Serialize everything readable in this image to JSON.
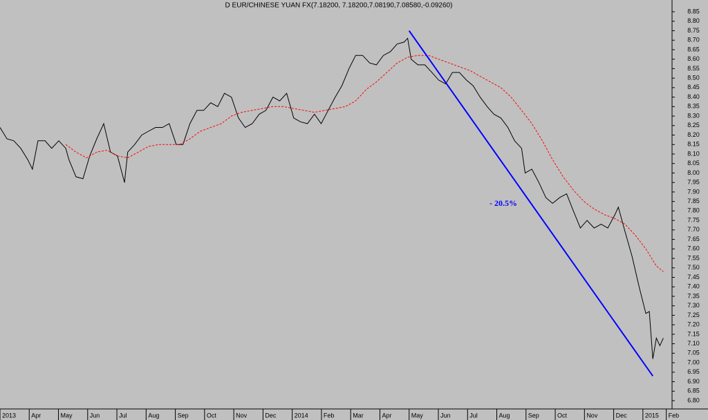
{
  "chart_data": {
    "type": "line",
    "title": "D EUR/CHINESE YUAN FX(7.18200, 7.18200,7.08190,7.08580,-0.09260)",
    "annotations": [
      "- 20.5%"
    ],
    "xlim": [
      0,
      22.95
    ],
    "xticks": [
      {
        "value": 0,
        "label": "2013"
      },
      {
        "value": 1,
        "label": "Apr"
      },
      {
        "value": 2,
        "label": "May"
      },
      {
        "value": 3,
        "label": "Jun"
      },
      {
        "value": 4,
        "label": "Jul"
      },
      {
        "value": 5,
        "label": "Aug"
      },
      {
        "value": 6,
        "label": "Sep"
      },
      {
        "value": 7,
        "label": "Oct"
      },
      {
        "value": 8,
        "label": "Nov"
      },
      {
        "value": 9,
        "label": "Dec"
      },
      {
        "value": 10,
        "label": "2014"
      },
      {
        "value": 11,
        "label": "Feb"
      },
      {
        "value": 12,
        "label": "Mar"
      },
      {
        "value": 13,
        "label": "Apr"
      },
      {
        "value": 14,
        "label": "May"
      },
      {
        "value": 15,
        "label": "Jun"
      },
      {
        "value": 16,
        "label": "Jul"
      },
      {
        "value": 17,
        "label": "Aug"
      },
      {
        "value": 18,
        "label": "Sep"
      },
      {
        "value": 19,
        "label": "Oct"
      },
      {
        "value": 20,
        "label": "Nov"
      },
      {
        "value": 21,
        "label": "Dec"
      },
      {
        "value": 22,
        "label": "2015"
      },
      {
        "value": 22.8,
        "label": "Feb"
      }
    ],
    "ylim": [
      6.8,
      8.85
    ],
    "yticks": [
      {
        "value": 6.8,
        "label": "6.80"
      },
      {
        "value": 6.85,
        "label": "6.85"
      },
      {
        "value": 6.9,
        "label": "6.90"
      },
      {
        "value": 6.95,
        "label": "6.95"
      },
      {
        "value": 7.0,
        "label": "7.00"
      },
      {
        "value": 7.05,
        "label": "7.05"
      },
      {
        "value": 7.1,
        "label": "7.10"
      },
      {
        "value": 7.15,
        "label": "7.15"
      },
      {
        "value": 7.2,
        "label": "7.20"
      },
      {
        "value": 7.25,
        "label": "7.25"
      },
      {
        "value": 7.3,
        "label": "7.30"
      },
      {
        "value": 7.35,
        "label": "7.35"
      },
      {
        "value": 7.4,
        "label": "7.40"
      },
      {
        "value": 7.45,
        "label": "7.45"
      },
      {
        "value": 7.5,
        "label": "7.50"
      },
      {
        "value": 7.55,
        "label": "7.55"
      },
      {
        "value": 7.6,
        "label": "7.60"
      },
      {
        "value": 7.65,
        "label": "7.65"
      },
      {
        "value": 7.7,
        "label": "7.70"
      },
      {
        "value": 7.75,
        "label": "7.75"
      },
      {
        "value": 7.8,
        "label": "7.80"
      },
      {
        "value": 7.85,
        "label": "7.85"
      },
      {
        "value": 7.9,
        "label": "7.90"
      },
      {
        "value": 7.95,
        "label": "7.95"
      },
      {
        "value": 8.0,
        "label": "8.00"
      },
      {
        "value": 8.05,
        "label": "8.05"
      },
      {
        "value": 8.1,
        "label": "8.10"
      },
      {
        "value": 8.15,
        "label": "8.15"
      },
      {
        "value": 8.2,
        "label": "8.20"
      },
      {
        "value": 8.25,
        "label": "8.25"
      },
      {
        "value": 8.3,
        "label": "8.30"
      },
      {
        "value": 8.35,
        "label": "8.35"
      },
      {
        "value": 8.4,
        "label": "8.40"
      },
      {
        "value": 8.45,
        "label": "8.45"
      },
      {
        "value": 8.5,
        "label": "8.50"
      },
      {
        "value": 8.55,
        "label": "8.55"
      },
      {
        "value": 8.6,
        "label": "8.60"
      },
      {
        "value": 8.65,
        "label": "8.65"
      },
      {
        "value": 8.7,
        "label": "8.70"
      },
      {
        "value": 8.75,
        "label": "8.75"
      },
      {
        "value": 8.8,
        "label": "8.80"
      },
      {
        "value": 8.85,
        "label": "8.85"
      }
    ],
    "grid": false,
    "series": [
      {
        "color": "#000000",
        "dashed": false,
        "x": [
          0,
          0.24,
          0.47,
          0.71,
          0.95,
          1.11,
          1.3,
          1.54,
          1.77,
          2.01,
          2.25,
          2.36,
          2.6,
          2.84,
          3.07,
          3.31,
          3.55,
          3.78,
          4.02,
          4.26,
          4.37,
          4.61,
          4.85,
          5.08,
          5.32,
          5.56,
          5.79,
          6.03,
          6.26,
          6.5,
          6.74,
          6.97,
          7.21,
          7.45,
          7.68,
          7.92,
          8.16,
          8.39,
          8.63,
          8.87,
          9.1,
          9.34,
          9.57,
          9.81,
          10.05,
          10.28,
          10.52,
          10.76,
          10.99,
          11.23,
          11.47,
          11.7,
          11.94,
          12.17,
          12.41,
          12.65,
          12.88,
          13.12,
          13.36,
          13.59,
          13.83,
          13.95,
          14.07,
          14.3,
          14.54,
          14.78,
          15.01,
          15.25,
          15.48,
          15.72,
          15.96,
          16.19,
          16.43,
          16.67,
          16.9,
          17.14,
          17.38,
          17.61,
          17.85,
          17.97,
          18.2,
          18.44,
          18.68,
          18.91,
          19.15,
          19.39,
          19.62,
          19.86,
          20.09,
          20.33,
          20.57,
          20.8,
          21.04,
          21.16,
          21.39,
          21.63,
          21.87,
          22.1,
          22.22,
          22.34,
          22.46,
          22.58,
          22.7
        ],
        "values": [
          8.24,
          8.18,
          8.17,
          8.13,
          8.07,
          8.02,
          8.17,
          8.17,
          8.13,
          8.17,
          8.13,
          8.07,
          7.98,
          7.97,
          8.09,
          8.18,
          8.26,
          8.11,
          8.09,
          7.95,
          8.11,
          8.15,
          8.2,
          8.22,
          8.24,
          8.24,
          8.26,
          8.15,
          8.15,
          8.26,
          8.33,
          8.33,
          8.37,
          8.35,
          8.42,
          8.4,
          8.29,
          8.24,
          8.26,
          8.31,
          8.33,
          8.4,
          8.38,
          8.42,
          8.29,
          8.27,
          8.26,
          8.31,
          8.26,
          8.33,
          8.4,
          8.46,
          8.55,
          8.62,
          8.62,
          8.58,
          8.57,
          8.62,
          8.64,
          8.68,
          8.69,
          8.71,
          8.6,
          8.57,
          8.57,
          8.53,
          8.49,
          8.47,
          8.53,
          8.53,
          8.49,
          8.46,
          8.4,
          8.35,
          8.31,
          8.29,
          8.24,
          8.17,
          8.13,
          8.0,
          8.02,
          7.95,
          7.87,
          7.84,
          7.87,
          7.89,
          7.8,
          7.71,
          7.75,
          7.71,
          7.73,
          7.71,
          7.78,
          7.82,
          7.69,
          7.56,
          7.4,
          7.26,
          7.27,
          7.02,
          7.13,
          7.09,
          7.13
        ]
      },
      {
        "color": "#ff0000",
        "dashed": true,
        "x": [
          2.25,
          2.6,
          2.96,
          3.31,
          3.66,
          4.02,
          4.37,
          4.73,
          5.08,
          5.44,
          5.79,
          6.15,
          6.5,
          6.86,
          7.21,
          7.57,
          7.92,
          8.27,
          8.63,
          8.98,
          9.34,
          9.69,
          10.05,
          10.4,
          10.76,
          11.11,
          11.47,
          11.82,
          12.17,
          12.53,
          12.88,
          13.24,
          13.59,
          13.95,
          14.3,
          14.66,
          15.01,
          15.37,
          15.72,
          16.08,
          16.43,
          16.78,
          17.14,
          17.49,
          17.85,
          18.2,
          18.56,
          18.91,
          19.27,
          19.62,
          19.98,
          20.33,
          20.69,
          21.04,
          21.39,
          21.75,
          22.1,
          22.46,
          22.7
        ],
        "values": [
          8.15,
          8.11,
          8.08,
          8.11,
          8.12,
          8.09,
          8.08,
          8.11,
          8.14,
          8.15,
          8.15,
          8.15,
          8.18,
          8.22,
          8.24,
          8.26,
          8.3,
          8.32,
          8.33,
          8.34,
          8.35,
          8.35,
          8.34,
          8.33,
          8.32,
          8.33,
          8.34,
          8.35,
          8.38,
          8.44,
          8.48,
          8.53,
          8.58,
          8.61,
          8.62,
          8.62,
          8.6,
          8.58,
          8.56,
          8.54,
          8.51,
          8.48,
          8.45,
          8.4,
          8.33,
          8.26,
          8.17,
          8.07,
          7.98,
          7.91,
          7.85,
          7.81,
          7.78,
          7.76,
          7.73,
          7.67,
          7.6,
          7.51,
          7.48
        ]
      },
      {
        "color": "#0000ff",
        "dashed": false,
        "x": [
          14.0,
          22.34
        ],
        "values": [
          8.75,
          6.93
        ]
      }
    ]
  }
}
